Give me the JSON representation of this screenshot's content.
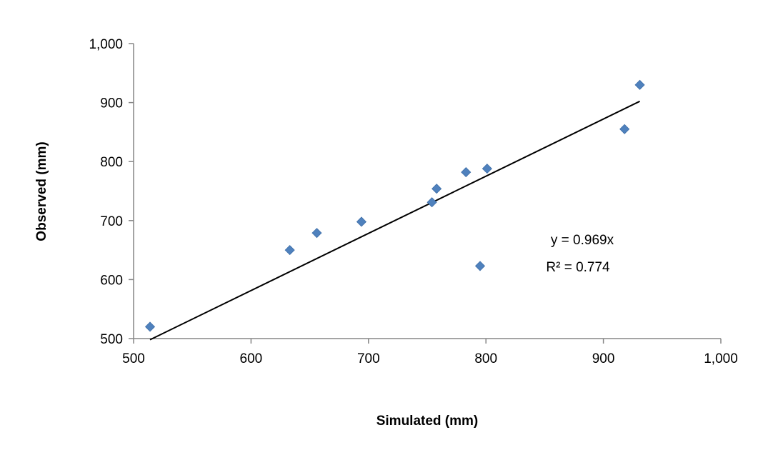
{
  "chart_data": {
    "type": "scatter",
    "xlabel": "Simulated (mm)",
    "ylabel": "Observed (mm)",
    "xlim": [
      500,
      1000
    ],
    "ylim": [
      500,
      1000
    ],
    "xticks": [
      "500",
      "600",
      "700",
      "800",
      "900",
      "1,000"
    ],
    "yticks": [
      "500",
      "600",
      "700",
      "800",
      "900",
      "1,000"
    ],
    "grid": false,
    "series": [
      {
        "color": "#4F81BD",
        "marker": "diamond",
        "points": [
          {
            "x": 514,
            "y": 520
          },
          {
            "x": 633,
            "y": 650
          },
          {
            "x": 656,
            "y": 679
          },
          {
            "x": 694,
            "y": 698
          },
          {
            "x": 754,
            "y": 731
          },
          {
            "x": 758,
            "y": 754
          },
          {
            "x": 783,
            "y": 782
          },
          {
            "x": 801,
            "y": 788
          },
          {
            "x": 795,
            "y": 623
          },
          {
            "x": 918,
            "y": 855
          },
          {
            "x": 931,
            "y": 930
          }
        ]
      }
    ],
    "trendline": {
      "slope": 0.969,
      "intercept": 0,
      "x_start": 514,
      "x_end": 931,
      "color": "#000000",
      "equation": "y = 0.969x",
      "r_squared": "R² = 0.774"
    }
  }
}
